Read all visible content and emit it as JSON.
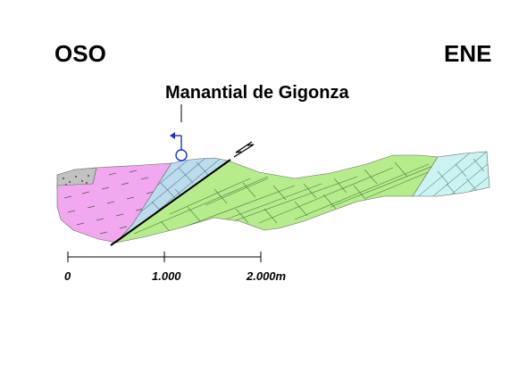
{
  "orientation": {
    "left_label": "OSO",
    "right_label": "ENE"
  },
  "spring": {
    "label": "Manantial de Gigonza",
    "symbol_icon": "spring-icon"
  },
  "scale_bar": {
    "ticks": [
      "0",
      "1.000",
      "2.000m"
    ]
  },
  "colors": {
    "pink_unit": "#f2a8ee",
    "blue_unit": "#bcdcec",
    "green_unit": "#b6ec8c",
    "cyan_unit": "#cdf2f2",
    "gray_unit": "#c2c2c2",
    "spring_symbol": "#1a2fd1",
    "fault_line": "#000000"
  }
}
